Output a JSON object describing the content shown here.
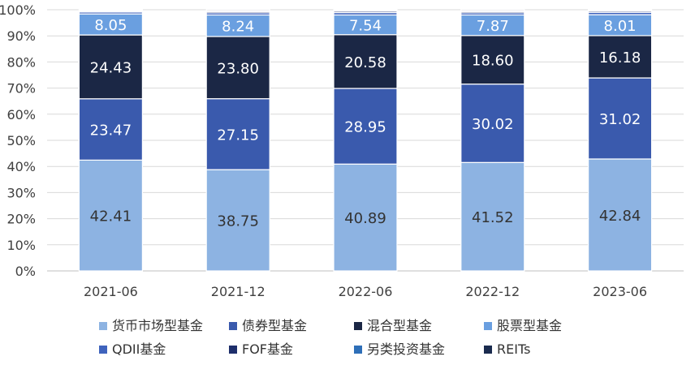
{
  "chart_data": {
    "type": "bar",
    "stacked": true,
    "percent_stacked": true,
    "categories": [
      "2021-06",
      "2021-12",
      "2022-06",
      "2022-12",
      "2023-06"
    ],
    "series": [
      {
        "name": "货币市场型基金",
        "color": "#8db3e2",
        "label_color": "#333333",
        "values": [
          42.41,
          38.75,
          40.89,
          41.52,
          42.84
        ],
        "labeled": true
      },
      {
        "name": "债券型基金",
        "color": "#3a5aad",
        "label_color": "#ffffff",
        "values": [
          23.47,
          27.15,
          28.95,
          30.02,
          31.02
        ],
        "labeled": true
      },
      {
        "name": "混合型基金",
        "color": "#1b2745",
        "label_color": "#ffffff",
        "values": [
          24.43,
          23.8,
          20.58,
          18.6,
          16.18
        ],
        "labeled": true
      },
      {
        "name": "股票型基金",
        "color": "#6a9fe0",
        "label_color": "#ffffff",
        "values": [
          8.05,
          8.24,
          7.54,
          7.87,
          8.01
        ],
        "labeled": true
      },
      {
        "name": "QDII基金",
        "color": "#3f63bd",
        "label_color": "#ffffff",
        "values": [
          0.7,
          0.8,
          0.9,
          0.8,
          0.9
        ],
        "labeled": false
      },
      {
        "name": "FOF基金",
        "color": "#1e2e6b",
        "label_color": "#ffffff",
        "values": [
          0.3,
          0.5,
          0.5,
          0.5,
          0.5
        ],
        "labeled": false
      },
      {
        "name": "另类投资基金",
        "color": "#2e6fb8",
        "label_color": "#ffffff",
        "values": [
          0.3,
          0.3,
          0.3,
          0.3,
          0.2
        ],
        "labeled": false
      },
      {
        "name": "REITs",
        "color": "#1a2b4e",
        "label_color": "#ffffff",
        "values": [
          0.3,
          0.4,
          0.3,
          0.4,
          0.3
        ],
        "labeled": false
      }
    ],
    "y_ticks": [
      "0%",
      "10%",
      "20%",
      "30%",
      "40%",
      "50%",
      "60%",
      "70%",
      "80%",
      "90%",
      "100%"
    ],
    "ylim": [
      0,
      100
    ],
    "grid": true,
    "legend_position": "bottom"
  }
}
